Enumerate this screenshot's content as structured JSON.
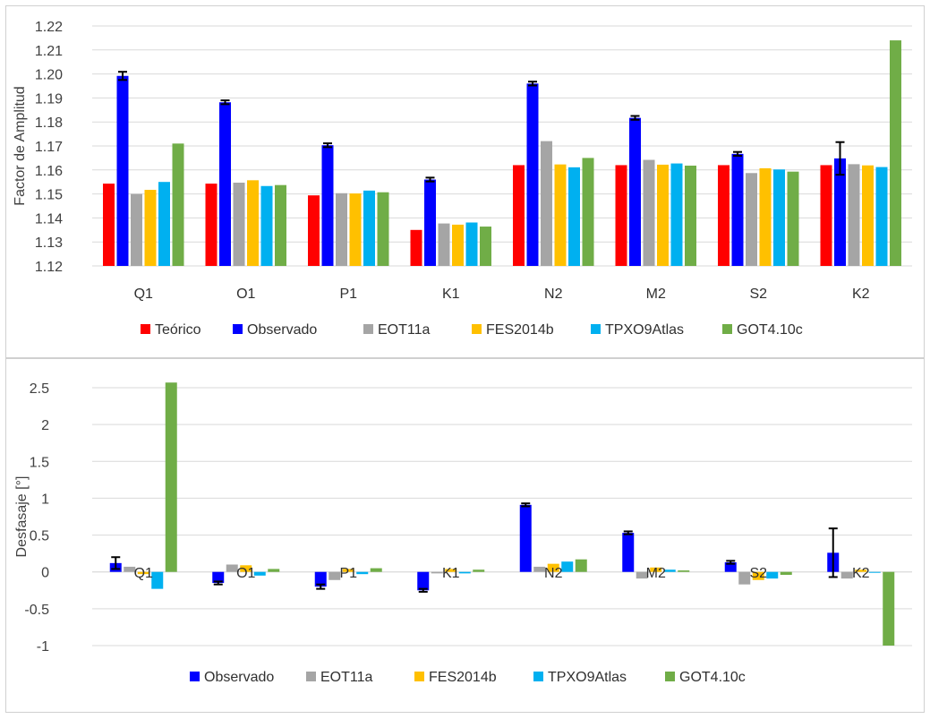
{
  "chart_data": [
    {
      "type": "bar",
      "ylabel": "Factor de Amplitud",
      "xlabel": "",
      "ylim": [
        1.12,
        1.22
      ],
      "ytick_step": 0.01,
      "ytick_labels": [
        "1.12",
        "1.13",
        "1.14",
        "1.15",
        "1.16",
        "1.17",
        "1.18",
        "1.19",
        "1.20",
        "1.21",
        "1.22"
      ],
      "categories": [
        "Q1",
        "O1",
        "P1",
        "K1",
        "N2",
        "M2",
        "S2",
        "K2"
      ],
      "legend_position": "bottom",
      "grid": true,
      "series": [
        {
          "name": "Teórico",
          "color": "#ff0000",
          "values": [
            1.1543,
            1.1543,
            1.1494,
            1.135,
            1.162,
            1.162,
            1.162,
            1.162
          ]
        },
        {
          "name": "Observado",
          "color": "#0000ff",
          "values": [
            1.1992,
            1.1882,
            1.1703,
            1.156,
            1.196,
            1.1817,
            1.1667,
            1.1648
          ],
          "errors": [
            0.0017,
            0.0008,
            0.0008,
            0.0008,
            0.0008,
            0.0008,
            0.0008,
            0.0068
          ]
        },
        {
          "name": "EOT11a",
          "color": "#a5a5a5",
          "values": [
            1.15,
            1.1547,
            1.1503,
            1.1377,
            1.172,
            1.1642,
            1.1587,
            1.1624
          ]
        },
        {
          "name": "FES2014b",
          "color": "#ffc000",
          "values": [
            1.1517,
            1.1557,
            1.1502,
            1.1372,
            1.1623,
            1.1622,
            1.1607,
            1.1619
          ]
        },
        {
          "name": "TPXO9Atlas",
          "color": "#00b0f0",
          "values": [
            1.155,
            1.1533,
            1.1514,
            1.1381,
            1.1611,
            1.1627,
            1.1602,
            1.1612
          ]
        },
        {
          "name": "GOT4.10c",
          "color": "#70ad47",
          "values": [
            1.171,
            1.1537,
            1.1507,
            1.1364,
            1.165,
            1.1618,
            1.1593,
            1.214
          ]
        }
      ]
    },
    {
      "type": "bar",
      "ylabel": "Desfasaje [°]",
      "xlabel": "",
      "ylim": [
        -1,
        2.5
      ],
      "ytick_step": 0.5,
      "ytick_labels": [
        "-1",
        "-0.5",
        "0",
        "0.5",
        "1",
        "1.5",
        "2",
        "2.5"
      ],
      "categories": [
        "Q1",
        "O1",
        "P1",
        "K1",
        "N2",
        "M2",
        "S2",
        "K2"
      ],
      "legend_position": "bottom",
      "grid": true,
      "series": [
        {
          "name": "Observado",
          "color": "#0000ff",
          "values": [
            0.12,
            -0.15,
            -0.2,
            -0.25,
            0.91,
            0.53,
            0.13,
            0.26
          ],
          "errors": [
            0.08,
            0.02,
            0.03,
            0.02,
            0.02,
            0.02,
            0.02,
            0.33
          ]
        },
        {
          "name": "EOT11a",
          "color": "#a5a5a5",
          "values": [
            0.07,
            0.1,
            -0.11,
            -0.02,
            0.07,
            -0.09,
            -0.17,
            -0.09
          ]
        },
        {
          "name": "FES2014b",
          "color": "#ffc000",
          "values": [
            -0.03,
            0.09,
            0.04,
            0.04,
            0.11,
            0.06,
            -0.11,
            0.03
          ]
        },
        {
          "name": "TPXO9Atlas",
          "color": "#00b0f0",
          "values": [
            -0.23,
            -0.05,
            -0.03,
            -0.02,
            0.14,
            0.03,
            -0.09,
            0.0
          ]
        },
        {
          "name": "GOT4.10c",
          "color": "#70ad47",
          "values": [
            2.57,
            0.04,
            0.05,
            0.03,
            0.17,
            0.02,
            -0.04,
            -1.0
          ]
        }
      ]
    }
  ]
}
